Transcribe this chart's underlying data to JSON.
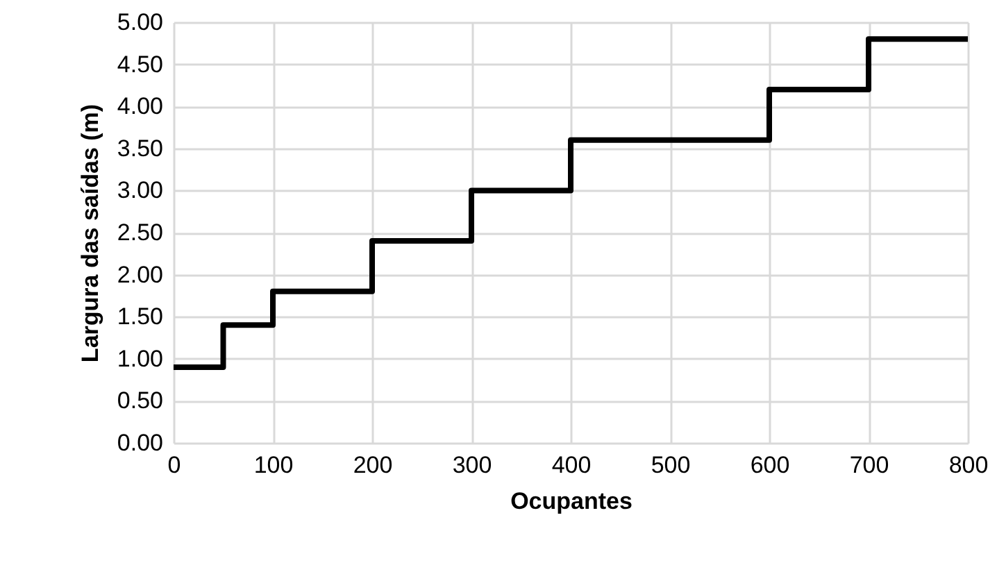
{
  "chart_data": {
    "type": "step",
    "xlabel": "Ocupantes",
    "ylabel": "Largura das saídas (m)",
    "x": [
      0,
      50,
      100,
      200,
      300,
      400,
      600,
      700,
      800
    ],
    "series": [
      {
        "color": "#000000",
        "values": [
          0.9,
          1.4,
          1.8,
          2.4,
          3.0,
          3.6,
          4.2,
          4.8,
          4.8
        ]
      }
    ],
    "xlim": [
      0,
      800
    ],
    "xticks": [
      0,
      100,
      200,
      300,
      400,
      500,
      600,
      700,
      800
    ],
    "ylim": [
      0,
      5
    ],
    "yticks": [
      {
        "value": 0,
        "label": "0.00"
      },
      {
        "value": 0.5,
        "label": "0.50"
      },
      {
        "value": 1,
        "label": "1.00"
      },
      {
        "value": 1.5,
        "label": "1.50"
      },
      {
        "value": 2,
        "label": "2.00"
      },
      {
        "value": 2.5,
        "label": "2.50"
      },
      {
        "value": 3,
        "label": "3.00"
      },
      {
        "value": 3.5,
        "label": "3.50"
      },
      {
        "value": 4,
        "label": "4.00"
      },
      {
        "value": 4.5,
        "label": "4.50"
      },
      {
        "value": 5,
        "label": "5.00"
      }
    ],
    "grid": true,
    "marker": "none",
    "line_style": "solid"
  }
}
